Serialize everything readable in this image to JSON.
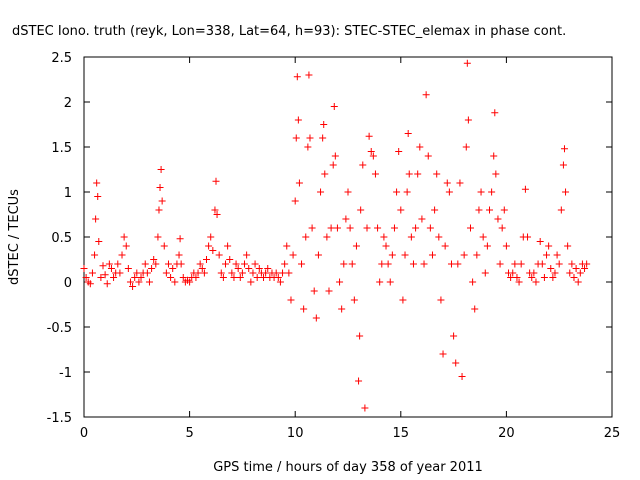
{
  "chart_data": {
    "type": "scatter",
    "title": "dSTEC Iono. truth (reyk, Lon=338, Lat=64, h=93): STEC-STEC_elemax in phase cont.",
    "xlabel": "GPS time / hours of day 358 of year 2011",
    "ylabel": "dSTEC  / TECUs",
    "xlim": [
      0,
      25
    ],
    "ylim": [
      -1.5,
      2.5
    ],
    "x_ticks": [
      0,
      5,
      10,
      15,
      20,
      25
    ],
    "x_tick_labels": [
      "0",
      "5",
      "10",
      "15",
      "20",
      "25"
    ],
    "y_ticks": [
      -1.5,
      -1,
      -0.5,
      0,
      0.5,
      1,
      1.5,
      2,
      2.5
    ],
    "y_tick_labels": [
      "-1.5",
      "-1",
      "-0.5",
      "0",
      "0.5",
      "1",
      "1.5",
      "2",
      "2.5"
    ],
    "grid": false,
    "legend": "none",
    "marker": "+",
    "color": "#ff0000",
    "series": [
      {
        "points": [
          [
            0.0,
            0.15
          ],
          [
            0.1,
            0.05
          ],
          [
            0.2,
            0.0
          ],
          [
            0.3,
            -0.02
          ],
          [
            0.4,
            0.1
          ],
          [
            0.5,
            0.3
          ],
          [
            0.55,
            0.7
          ],
          [
            0.6,
            1.1
          ],
          [
            0.65,
            0.95
          ],
          [
            0.7,
            0.45
          ],
          [
            0.8,
            0.05
          ],
          [
            0.9,
            0.18
          ],
          [
            1.0,
            0.08
          ],
          [
            1.1,
            -0.02
          ],
          [
            1.2,
            0.2
          ],
          [
            1.3,
            0.15
          ],
          [
            1.4,
            0.05
          ],
          [
            1.5,
            0.1
          ],
          [
            1.6,
            0.2
          ],
          [
            1.7,
            0.1
          ],
          [
            1.8,
            0.3
          ],
          [
            1.9,
            0.5
          ],
          [
            2.0,
            0.4
          ],
          [
            2.1,
            0.15
          ],
          [
            2.2,
            0.0
          ],
          [
            2.3,
            -0.05
          ],
          [
            2.4,
            0.05
          ],
          [
            2.5,
            0.1
          ],
          [
            2.6,
            0.0
          ],
          [
            2.7,
            0.05
          ],
          [
            2.8,
            0.1
          ],
          [
            2.9,
            0.2
          ],
          [
            3.0,
            0.1
          ],
          [
            3.1,
            0.0
          ],
          [
            3.2,
            0.15
          ],
          [
            3.3,
            0.25
          ],
          [
            3.4,
            0.2
          ],
          [
            3.5,
            0.5
          ],
          [
            3.55,
            0.8
          ],
          [
            3.6,
            1.05
          ],
          [
            3.65,
            1.25
          ],
          [
            3.7,
            0.9
          ],
          [
            3.8,
            0.4
          ],
          [
            3.9,
            0.1
          ],
          [
            4.0,
            0.2
          ],
          [
            4.1,
            0.05
          ],
          [
            4.2,
            0.15
          ],
          [
            4.3,
            0.0
          ],
          [
            4.4,
            0.2
          ],
          [
            4.5,
            0.3
          ],
          [
            4.55,
            0.48
          ],
          [
            4.6,
            0.2
          ],
          [
            4.7,
            0.05
          ],
          [
            4.8,
            0.0
          ],
          [
            4.9,
            0.02
          ],
          [
            5.0,
            0.0
          ],
          [
            5.1,
            0.05
          ],
          [
            5.2,
            0.1
          ],
          [
            5.3,
            0.05
          ],
          [
            5.4,
            0.1
          ],
          [
            5.5,
            0.2
          ],
          [
            5.6,
            0.15
          ],
          [
            5.7,
            0.1
          ],
          [
            5.8,
            0.25
          ],
          [
            5.9,
            0.4
          ],
          [
            6.0,
            0.5
          ],
          [
            6.1,
            0.35
          ],
          [
            6.2,
            0.8
          ],
          [
            6.25,
            1.12
          ],
          [
            6.3,
            0.75
          ],
          [
            6.4,
            0.3
          ],
          [
            6.5,
            0.1
          ],
          [
            6.6,
            0.05
          ],
          [
            6.7,
            0.2
          ],
          [
            6.8,
            0.4
          ],
          [
            6.9,
            0.25
          ],
          [
            7.0,
            0.1
          ],
          [
            7.1,
            0.05
          ],
          [
            7.2,
            0.2
          ],
          [
            7.3,
            0.15
          ],
          [
            7.4,
            0.05
          ],
          [
            7.5,
            0.1
          ],
          [
            7.6,
            0.2
          ],
          [
            7.7,
            0.3
          ],
          [
            7.8,
            0.15
          ],
          [
            7.9,
            0.0
          ],
          [
            8.0,
            0.1
          ],
          [
            8.1,
            0.2
          ],
          [
            8.2,
            0.05
          ],
          [
            8.3,
            0.15
          ],
          [
            8.4,
            0.1
          ],
          [
            8.5,
            0.05
          ],
          [
            8.6,
            0.1
          ],
          [
            8.7,
            0.15
          ],
          [
            8.8,
            0.05
          ],
          [
            8.9,
            0.1
          ],
          [
            9.0,
            0.05
          ],
          [
            9.1,
            0.1
          ],
          [
            9.2,
            0.05
          ],
          [
            9.3,
            0.0
          ],
          [
            9.4,
            0.1
          ],
          [
            9.5,
            0.2
          ],
          [
            9.6,
            0.4
          ],
          [
            9.7,
            0.1
          ],
          [
            9.8,
            -0.2
          ],
          [
            9.9,
            0.3
          ],
          [
            10.0,
            0.9
          ],
          [
            10.05,
            1.6
          ],
          [
            10.1,
            2.28
          ],
          [
            10.15,
            1.8
          ],
          [
            10.2,
            1.1
          ],
          [
            10.3,
            0.2
          ],
          [
            10.4,
            -0.3
          ],
          [
            10.5,
            0.5
          ],
          [
            10.6,
            1.5
          ],
          [
            10.65,
            2.3
          ],
          [
            10.7,
            1.6
          ],
          [
            10.8,
            0.6
          ],
          [
            10.9,
            -0.1
          ],
          [
            11.0,
            -0.4
          ],
          [
            11.1,
            0.3
          ],
          [
            11.2,
            1.0
          ],
          [
            11.3,
            1.6
          ],
          [
            11.35,
            1.75
          ],
          [
            11.4,
            1.2
          ],
          [
            11.5,
            0.5
          ],
          [
            11.6,
            -0.1
          ],
          [
            11.7,
            0.6
          ],
          [
            11.8,
            1.3
          ],
          [
            11.85,
            1.95
          ],
          [
            11.9,
            1.4
          ],
          [
            12.0,
            0.6
          ],
          [
            12.1,
            0.0
          ],
          [
            12.2,
            -0.3
          ],
          [
            12.3,
            0.2
          ],
          [
            12.4,
            0.7
          ],
          [
            12.5,
            1.0
          ],
          [
            12.6,
            0.6
          ],
          [
            12.7,
            0.2
          ],
          [
            12.8,
            -0.2
          ],
          [
            12.9,
            0.4
          ],
          [
            13.0,
            -1.1
          ],
          [
            13.05,
            -0.6
          ],
          [
            13.1,
            0.8
          ],
          [
            13.2,
            1.3
          ],
          [
            13.3,
            -1.4
          ],
          [
            13.4,
            0.6
          ],
          [
            13.5,
            1.62
          ],
          [
            13.6,
            1.45
          ],
          [
            13.7,
            1.4
          ],
          [
            13.8,
            1.2
          ],
          [
            13.9,
            0.6
          ],
          [
            14.0,
            0.0
          ],
          [
            14.1,
            0.2
          ],
          [
            14.2,
            0.5
          ],
          [
            14.3,
            0.4
          ],
          [
            14.4,
            0.2
          ],
          [
            14.5,
            0.0
          ],
          [
            14.6,
            0.3
          ],
          [
            14.7,
            0.6
          ],
          [
            14.8,
            1.0
          ],
          [
            14.9,
            1.45
          ],
          [
            15.0,
            0.8
          ],
          [
            15.1,
            -0.2
          ],
          [
            15.2,
            0.3
          ],
          [
            15.3,
            1.0
          ],
          [
            15.35,
            1.65
          ],
          [
            15.4,
            1.2
          ],
          [
            15.5,
            0.5
          ],
          [
            15.6,
            0.2
          ],
          [
            15.7,
            0.6
          ],
          [
            15.8,
            1.2
          ],
          [
            15.9,
            1.5
          ],
          [
            16.0,
            0.7
          ],
          [
            16.1,
            0.2
          ],
          [
            16.2,
            2.08
          ],
          [
            16.3,
            1.4
          ],
          [
            16.4,
            0.6
          ],
          [
            16.5,
            0.3
          ],
          [
            16.6,
            0.8
          ],
          [
            16.7,
            1.2
          ],
          [
            16.8,
            0.5
          ],
          [
            16.9,
            -0.2
          ],
          [
            17.0,
            -0.8
          ],
          [
            17.1,
            0.4
          ],
          [
            17.2,
            1.1
          ],
          [
            17.3,
            1.0
          ],
          [
            17.4,
            0.2
          ],
          [
            17.5,
            -0.6
          ],
          [
            17.6,
            -0.9
          ],
          [
            17.7,
            0.2
          ],
          [
            17.8,
            1.1
          ],
          [
            17.9,
            -1.05
          ],
          [
            18.0,
            0.3
          ],
          [
            18.1,
            1.5
          ],
          [
            18.15,
            2.43
          ],
          [
            18.2,
            1.8
          ],
          [
            18.3,
            0.6
          ],
          [
            18.4,
            0.0
          ],
          [
            18.5,
            -0.3
          ],
          [
            18.6,
            0.3
          ],
          [
            18.7,
            0.8
          ],
          [
            18.8,
            1.0
          ],
          [
            18.9,
            0.5
          ],
          [
            19.0,
            0.1
          ],
          [
            19.1,
            0.4
          ],
          [
            19.2,
            0.8
          ],
          [
            19.3,
            1.0
          ],
          [
            19.4,
            1.4
          ],
          [
            19.45,
            1.88
          ],
          [
            19.5,
            1.2
          ],
          [
            19.6,
            0.7
          ],
          [
            19.7,
            0.2
          ],
          [
            19.8,
            0.6
          ],
          [
            19.9,
            0.8
          ],
          [
            20.0,
            0.4
          ],
          [
            20.1,
            0.1
          ],
          [
            20.2,
            0.05
          ],
          [
            20.3,
            0.1
          ],
          [
            20.4,
            0.2
          ],
          [
            20.5,
            0.05
          ],
          [
            20.6,
            0.0
          ],
          [
            20.7,
            0.2
          ],
          [
            20.8,
            0.5
          ],
          [
            20.9,
            1.03
          ],
          [
            21.0,
            0.5
          ],
          [
            21.1,
            0.1
          ],
          [
            21.2,
            0.05
          ],
          [
            21.3,
            0.1
          ],
          [
            21.4,
            0.0
          ],
          [
            21.5,
            0.2
          ],
          [
            21.6,
            0.45
          ],
          [
            21.7,
            0.2
          ],
          [
            21.8,
            0.05
          ],
          [
            21.9,
            0.3
          ],
          [
            22.0,
            0.4
          ],
          [
            22.1,
            0.15
          ],
          [
            22.2,
            0.05
          ],
          [
            22.3,
            0.1
          ],
          [
            22.4,
            0.3
          ],
          [
            22.5,
            0.2
          ],
          [
            22.6,
            0.8
          ],
          [
            22.7,
            1.3
          ],
          [
            22.75,
            1.48
          ],
          [
            22.8,
            1.0
          ],
          [
            22.9,
            0.4
          ],
          [
            23.0,
            0.1
          ],
          [
            23.1,
            0.2
          ],
          [
            23.2,
            0.05
          ],
          [
            23.3,
            0.15
          ],
          [
            23.4,
            0.0
          ],
          [
            23.5,
            0.1
          ],
          [
            23.6,
            0.2
          ],
          [
            23.7,
            0.15
          ],
          [
            23.8,
            0.2
          ]
        ]
      }
    ]
  }
}
